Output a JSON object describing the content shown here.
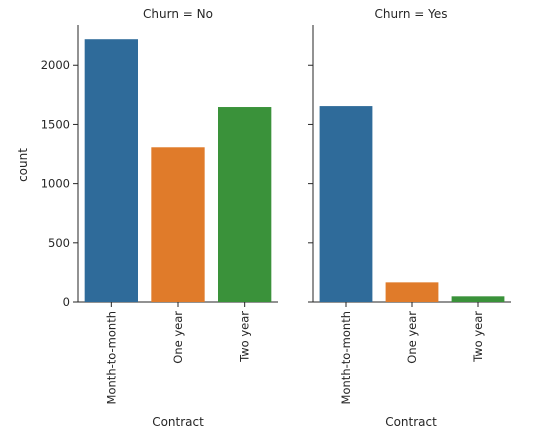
{
  "chart_data": [
    {
      "type": "bar",
      "title": "Churn = No",
      "xlabel": "Contract",
      "ylabel": "count",
      "categories": [
        "Month-to-month",
        "One year",
        "Two year"
      ],
      "values": [
        2220,
        1307,
        1647
      ],
      "colors": [
        "#2f6b9a",
        "#e07b2a",
        "#3a923a"
      ],
      "ylim": [
        0,
        2340
      ],
      "yticks": [
        0,
        500,
        1000,
        1500,
        2000
      ],
      "grid": false,
      "legend": "none"
    },
    {
      "type": "bar",
      "title": "Churn = Yes",
      "xlabel": "Contract",
      "ylabel": "",
      "categories": [
        "Month-to-month",
        "One year",
        "Two year"
      ],
      "values": [
        1655,
        166,
        48
      ],
      "colors": [
        "#2f6b9a",
        "#e07b2a",
        "#3a923a"
      ],
      "ylim": [
        0,
        2340
      ],
      "yticks": [
        0,
        500,
        1000,
        1500,
        2000
      ],
      "show_ytick_labels": false,
      "grid": false,
      "legend": "none"
    }
  ]
}
